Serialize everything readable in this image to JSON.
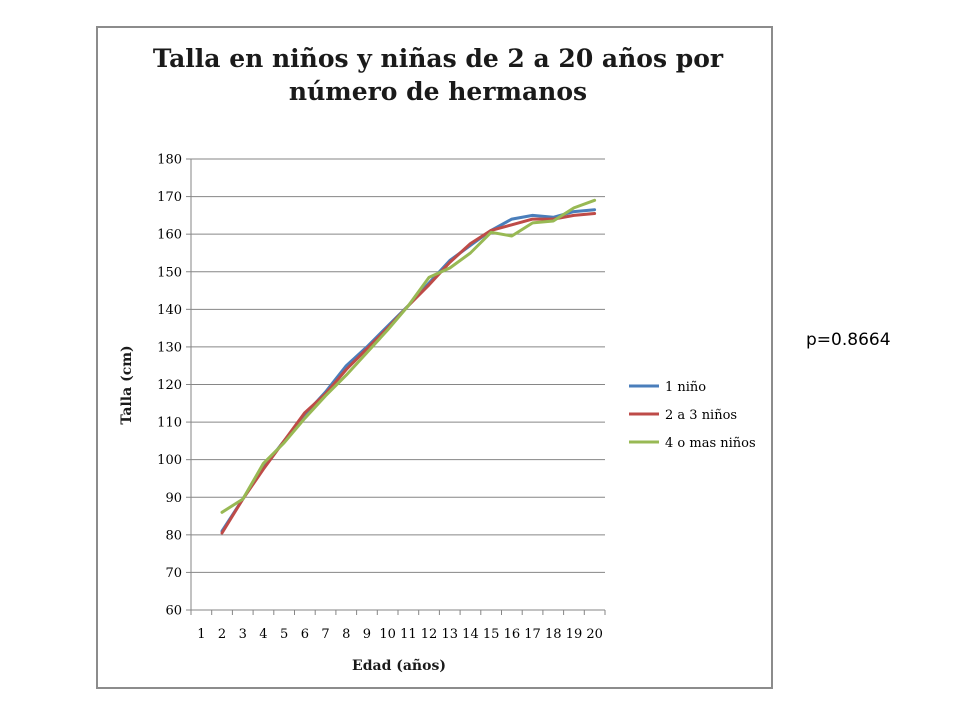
{
  "annotation": "p=0.8664",
  "chart_data": {
    "type": "line",
    "title_lines": [
      "Talla en niños y niñas de 2 a 20 años por",
      "número de hermanos"
    ],
    "xlabel": "Edad (años)",
    "ylabel": "Talla (cm)",
    "categories": [
      "1",
      "2",
      "3",
      "4",
      "5",
      "6",
      "7",
      "8",
      "9",
      "10",
      "11",
      "12",
      "13",
      "14",
      "15",
      "16",
      "17",
      "18",
      "19",
      "20"
    ],
    "ylim": [
      60,
      180
    ],
    "yticks": [
      60,
      70,
      80,
      90,
      100,
      110,
      120,
      130,
      140,
      150,
      160,
      170,
      180
    ],
    "grid": "horizontal",
    "legend_position": "right",
    "series": [
      {
        "name": "1 niño",
        "color": "#4a7ebb",
        "values": [
          null,
          81,
          89.5,
          98,
          105,
          112,
          118,
          125,
          130,
          135.5,
          141,
          147,
          153,
          157,
          161,
          164,
          165,
          164.5,
          166,
          166.5
        ]
      },
      {
        "name": "2 a 3 niños",
        "color": "#be4b48",
        "values": [
          null,
          80.5,
          89.5,
          97.5,
          105,
          112.5,
          117.5,
          124,
          129.5,
          135,
          141,
          146.5,
          152.5,
          157.5,
          161,
          162.5,
          164,
          164,
          165,
          165.5
        ]
      },
      {
        "name": "4 o mas niños",
        "color": "#98b954",
        "values": [
          null,
          86,
          89.5,
          99,
          104.5,
          111,
          117,
          122.5,
          128.5,
          134.5,
          141,
          148.5,
          151,
          155,
          160.5,
          159.5,
          163,
          163.5,
          167,
          169
        ]
      }
    ]
  }
}
